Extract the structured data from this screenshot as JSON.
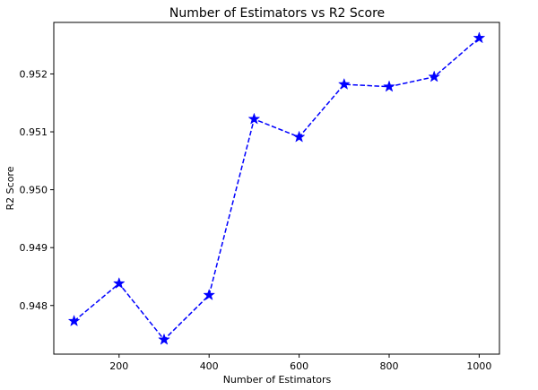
{
  "chart_data": {
    "type": "line",
    "title": "Number of Estimators vs R2 Score",
    "xlabel": "Number of Estimators",
    "ylabel": "R2 Score",
    "x": [
      100,
      200,
      300,
      400,
      500,
      600,
      700,
      800,
      900,
      1000
    ],
    "series": [
      {
        "values": [
          0.94773,
          0.94838,
          0.94741,
          0.94818,
          0.95122,
          0.95091,
          0.95182,
          0.95178,
          0.95195,
          0.95262
        ],
        "color": "#0000ff",
        "line_style": "dashed",
        "marker": "star"
      }
    ],
    "xlim": [
      55,
      1045
    ],
    "ylim": [
      0.94716,
      0.95289
    ],
    "x_ticks": [
      200,
      400,
      600,
      800,
      1000
    ],
    "x_tick_labels": [
      "200",
      "400",
      "600",
      "800",
      "1000"
    ],
    "y_ticks": [
      0.948,
      0.949,
      0.95,
      0.951,
      0.952
    ],
    "y_tick_labels": [
      "0.948",
      "0.949",
      "0.950",
      "0.951",
      "0.952"
    ],
    "grid": false,
    "legend": "none"
  }
}
